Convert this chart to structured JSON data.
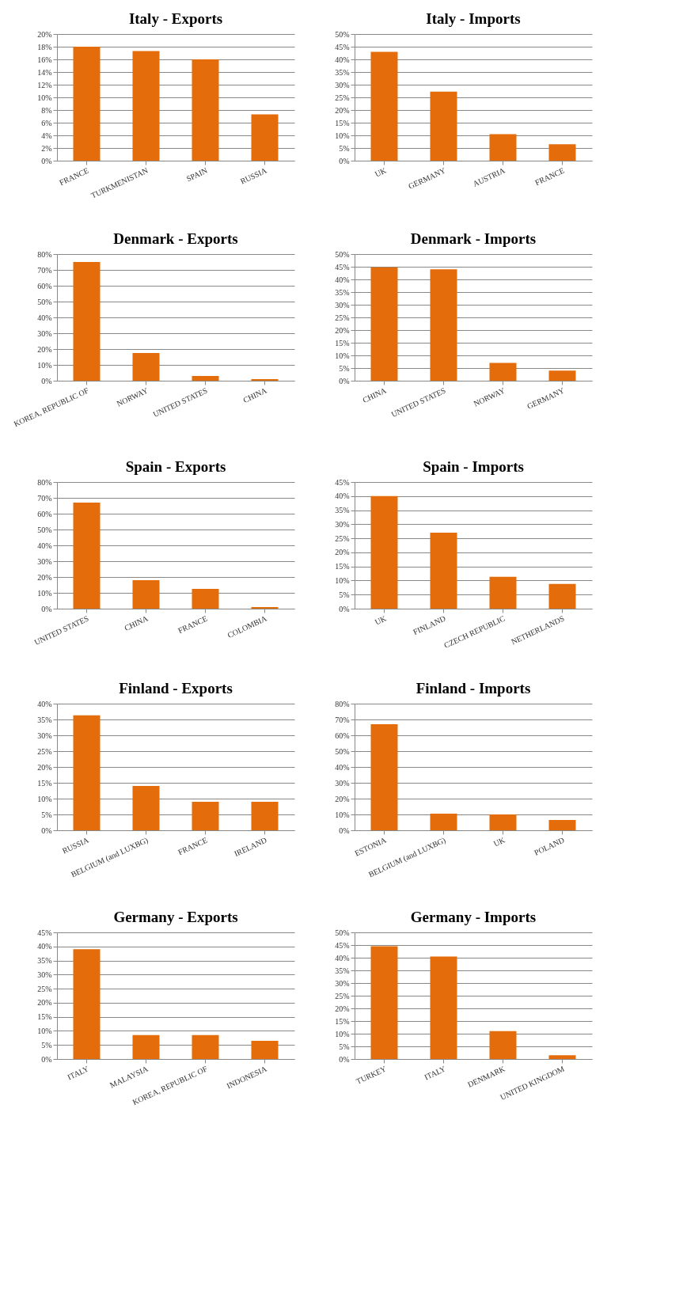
{
  "chart_data": [
    {
      "type": "bar",
      "title": "Italy - Exports",
      "categories": [
        "FRANCE",
        "TURKMENISTAN",
        "SPAIN",
        "RUSSIA"
      ],
      "values": [
        18,
        17.3,
        16,
        7.3
      ],
      "color": "#e46c0a",
      "ylim": [
        0,
        20
      ],
      "yticks": [
        {
          "value": 0,
          "label": "0%"
        },
        {
          "value": 2,
          "label": "2%"
        },
        {
          "value": 4,
          "label": "4%"
        },
        {
          "value": 6,
          "label": "6%"
        },
        {
          "value": 8,
          "label": "8%"
        },
        {
          "value": 10,
          "label": "10%"
        },
        {
          "value": 12,
          "label": "12%"
        },
        {
          "value": 14,
          "label": "14%"
        },
        {
          "value": 16,
          "label": "16%"
        },
        {
          "value": 18,
          "label": "18%"
        },
        {
          "value": 20,
          "label": "20%"
        }
      ],
      "grid": "y"
    },
    {
      "type": "bar",
      "title": "Italy - Imports",
      "categories": [
        "UK",
        "GERMANY",
        "AUSTRIA",
        "FRANCE"
      ],
      "values": [
        43,
        27.3,
        10.5,
        6.5
      ],
      "color": "#e46c0a",
      "ylim": [
        0,
        50
      ],
      "yticks": [
        {
          "value": 0,
          "label": "0%"
        },
        {
          "value": 5,
          "label": "5%"
        },
        {
          "value": 10,
          "label": "10%"
        },
        {
          "value": 15,
          "label": "15%"
        },
        {
          "value": 20,
          "label": "20%"
        },
        {
          "value": 25,
          "label": "25%"
        },
        {
          "value": 30,
          "label": "30%"
        },
        {
          "value": 35,
          "label": "35%"
        },
        {
          "value": 40,
          "label": "40%"
        },
        {
          "value": 45,
          "label": "45%"
        },
        {
          "value": 50,
          "label": "50%"
        }
      ],
      "grid": "y"
    },
    {
      "type": "bar",
      "title": "Denmark - Exports",
      "categories": [
        "KOREA, REPUBLIC OF",
        "NORWAY",
        "UNITED STATES",
        "CHINA"
      ],
      "values": [
        75,
        17.5,
        3,
        1
      ],
      "color": "#e46c0a",
      "ylim": [
        0,
        80
      ],
      "yticks": [
        {
          "value": 0,
          "label": "0%"
        },
        {
          "value": 10,
          "label": "10%"
        },
        {
          "value": 20,
          "label": "20%"
        },
        {
          "value": 30,
          "label": "30%"
        },
        {
          "value": 40,
          "label": "40%"
        },
        {
          "value": 50,
          "label": "50%"
        },
        {
          "value": 60,
          "label": "60%"
        },
        {
          "value": 70,
          "label": "70%"
        },
        {
          "value": 80,
          "label": "80%"
        }
      ],
      "grid": "y"
    },
    {
      "type": "bar",
      "title": "Denmark - Imports",
      "categories": [
        "CHINA",
        "UNITED STATES",
        "NORWAY",
        "GERMANY"
      ],
      "values": [
        44.8,
        44,
        7,
        4
      ],
      "color": "#e46c0a",
      "ylim": [
        0,
        50
      ],
      "yticks": [
        {
          "value": 0,
          "label": "0%"
        },
        {
          "value": 5,
          "label": "5%"
        },
        {
          "value": 10,
          "label": "10%"
        },
        {
          "value": 15,
          "label": "15%"
        },
        {
          "value": 20,
          "label": "20%"
        },
        {
          "value": 25,
          "label": "25%"
        },
        {
          "value": 30,
          "label": "30%"
        },
        {
          "value": 35,
          "label": "35%"
        },
        {
          "value": 40,
          "label": "40%"
        },
        {
          "value": 45,
          "label": "45%"
        },
        {
          "value": 50,
          "label": "50%"
        }
      ],
      "grid": "y"
    },
    {
      "type": "bar",
      "title": "Spain - Exports",
      "categories": [
        "UNITED STATES",
        "CHINA",
        "FRANCE",
        "COLOMBIA"
      ],
      "values": [
        67,
        18,
        12.5,
        1
      ],
      "color": "#e46c0a",
      "ylim": [
        0,
        80
      ],
      "yticks": [
        {
          "value": 0,
          "label": "0%"
        },
        {
          "value": 10,
          "label": "10%"
        },
        {
          "value": 20,
          "label": "20%"
        },
        {
          "value": 30,
          "label": "30%"
        },
        {
          "value": 40,
          "label": "40%"
        },
        {
          "value": 50,
          "label": "50%"
        },
        {
          "value": 60,
          "label": "60%"
        },
        {
          "value": 70,
          "label": "70%"
        },
        {
          "value": 80,
          "label": "80%"
        }
      ],
      "grid": "y"
    },
    {
      "type": "bar",
      "title": "Spain - Imports",
      "categories": [
        "UK",
        "FINLAND",
        "CZECH REPUBLIC",
        "NETHERLANDS"
      ],
      "values": [
        40,
        27,
        11.3,
        8.8
      ],
      "color": "#e46c0a",
      "ylim": [
        0,
        45
      ],
      "yticks": [
        {
          "value": 0,
          "label": "0%"
        },
        {
          "value": 5,
          "label": "5%"
        },
        {
          "value": 10,
          "label": "10%"
        },
        {
          "value": 15,
          "label": "15%"
        },
        {
          "value": 20,
          "label": "20%"
        },
        {
          "value": 25,
          "label": "25%"
        },
        {
          "value": 30,
          "label": "30%"
        },
        {
          "value": 35,
          "label": "35%"
        },
        {
          "value": 40,
          "label": "40%"
        },
        {
          "value": 45,
          "label": "45%"
        }
      ],
      "grid": "y"
    },
    {
      "type": "bar",
      "title": "Finland - Exports",
      "categories": [
        "RUSSIA",
        "BELGIUM (and LUXBG)",
        "FRANCE",
        "IRELAND"
      ],
      "values": [
        36.3,
        14,
        9,
        9
      ],
      "color": "#e46c0a",
      "ylim": [
        0,
        40
      ],
      "yticks": [
        {
          "value": 0,
          "label": "0%"
        },
        {
          "value": 5,
          "label": "5%"
        },
        {
          "value": 10,
          "label": "10%"
        },
        {
          "value": 15,
          "label": "15%"
        },
        {
          "value": 20,
          "label": "20%"
        },
        {
          "value": 25,
          "label": "25%"
        },
        {
          "value": 30,
          "label": "30%"
        },
        {
          "value": 35,
          "label": "35%"
        },
        {
          "value": 40,
          "label": "40%"
        }
      ],
      "grid": "y"
    },
    {
      "type": "bar",
      "title": "Finland - Imports",
      "categories": [
        "ESTONIA",
        "BELGIUM (and LUXBG)",
        "UK",
        "POLAND"
      ],
      "values": [
        67,
        10.5,
        10,
        6.5
      ],
      "color": "#e46c0a",
      "ylim": [
        0,
        80
      ],
      "yticks": [
        {
          "value": 0,
          "label": "0%"
        },
        {
          "value": 10,
          "label": "10%"
        },
        {
          "value": 20,
          "label": "20%"
        },
        {
          "value": 30,
          "label": "30%"
        },
        {
          "value": 40,
          "label": "40%"
        },
        {
          "value": 50,
          "label": "50%"
        },
        {
          "value": 60,
          "label": "60%"
        },
        {
          "value": 70,
          "label": "70%"
        },
        {
          "value": 80,
          "label": "80%"
        }
      ],
      "grid": "y"
    },
    {
      "type": "bar",
      "title": "Germany - Exports",
      "categories": [
        "ITALY",
        "MALAYSIA",
        "KOREA, REPUBLIC OF",
        "INDONESIA"
      ],
      "values": [
        39,
        8.5,
        8.5,
        6.5
      ],
      "color": "#e46c0a",
      "ylim": [
        0,
        45
      ],
      "yticks": [
        {
          "value": 0,
          "label": "0%"
        },
        {
          "value": 5,
          "label": "5%"
        },
        {
          "value": 10,
          "label": "10%"
        },
        {
          "value": 15,
          "label": "15%"
        },
        {
          "value": 20,
          "label": "20%"
        },
        {
          "value": 25,
          "label": "25%"
        },
        {
          "value": 30,
          "label": "30%"
        },
        {
          "value": 35,
          "label": "35%"
        },
        {
          "value": 40,
          "label": "40%"
        },
        {
          "value": 45,
          "label": "45%"
        }
      ],
      "grid": "y"
    },
    {
      "type": "bar",
      "title": "Germany - Imports",
      "categories": [
        "TURKEY",
        "ITALY",
        "DENMARK",
        "UNITED KINGDOM"
      ],
      "values": [
        44.5,
        40.5,
        11,
        1.5
      ],
      "color": "#e46c0a",
      "ylim": [
        0,
        50
      ],
      "yticks": [
        {
          "value": 0,
          "label": "0%"
        },
        {
          "value": 5,
          "label": "5%"
        },
        {
          "value": 10,
          "label": "10%"
        },
        {
          "value": 15,
          "label": "15%"
        },
        {
          "value": 20,
          "label": "20%"
        },
        {
          "value": 25,
          "label": "25%"
        },
        {
          "value": 30,
          "label": "30%"
        },
        {
          "value": 35,
          "label": "35%"
        },
        {
          "value": 40,
          "label": "40%"
        },
        {
          "value": 45,
          "label": "45%"
        },
        {
          "value": 50,
          "label": "50%"
        }
      ],
      "grid": "y"
    }
  ]
}
